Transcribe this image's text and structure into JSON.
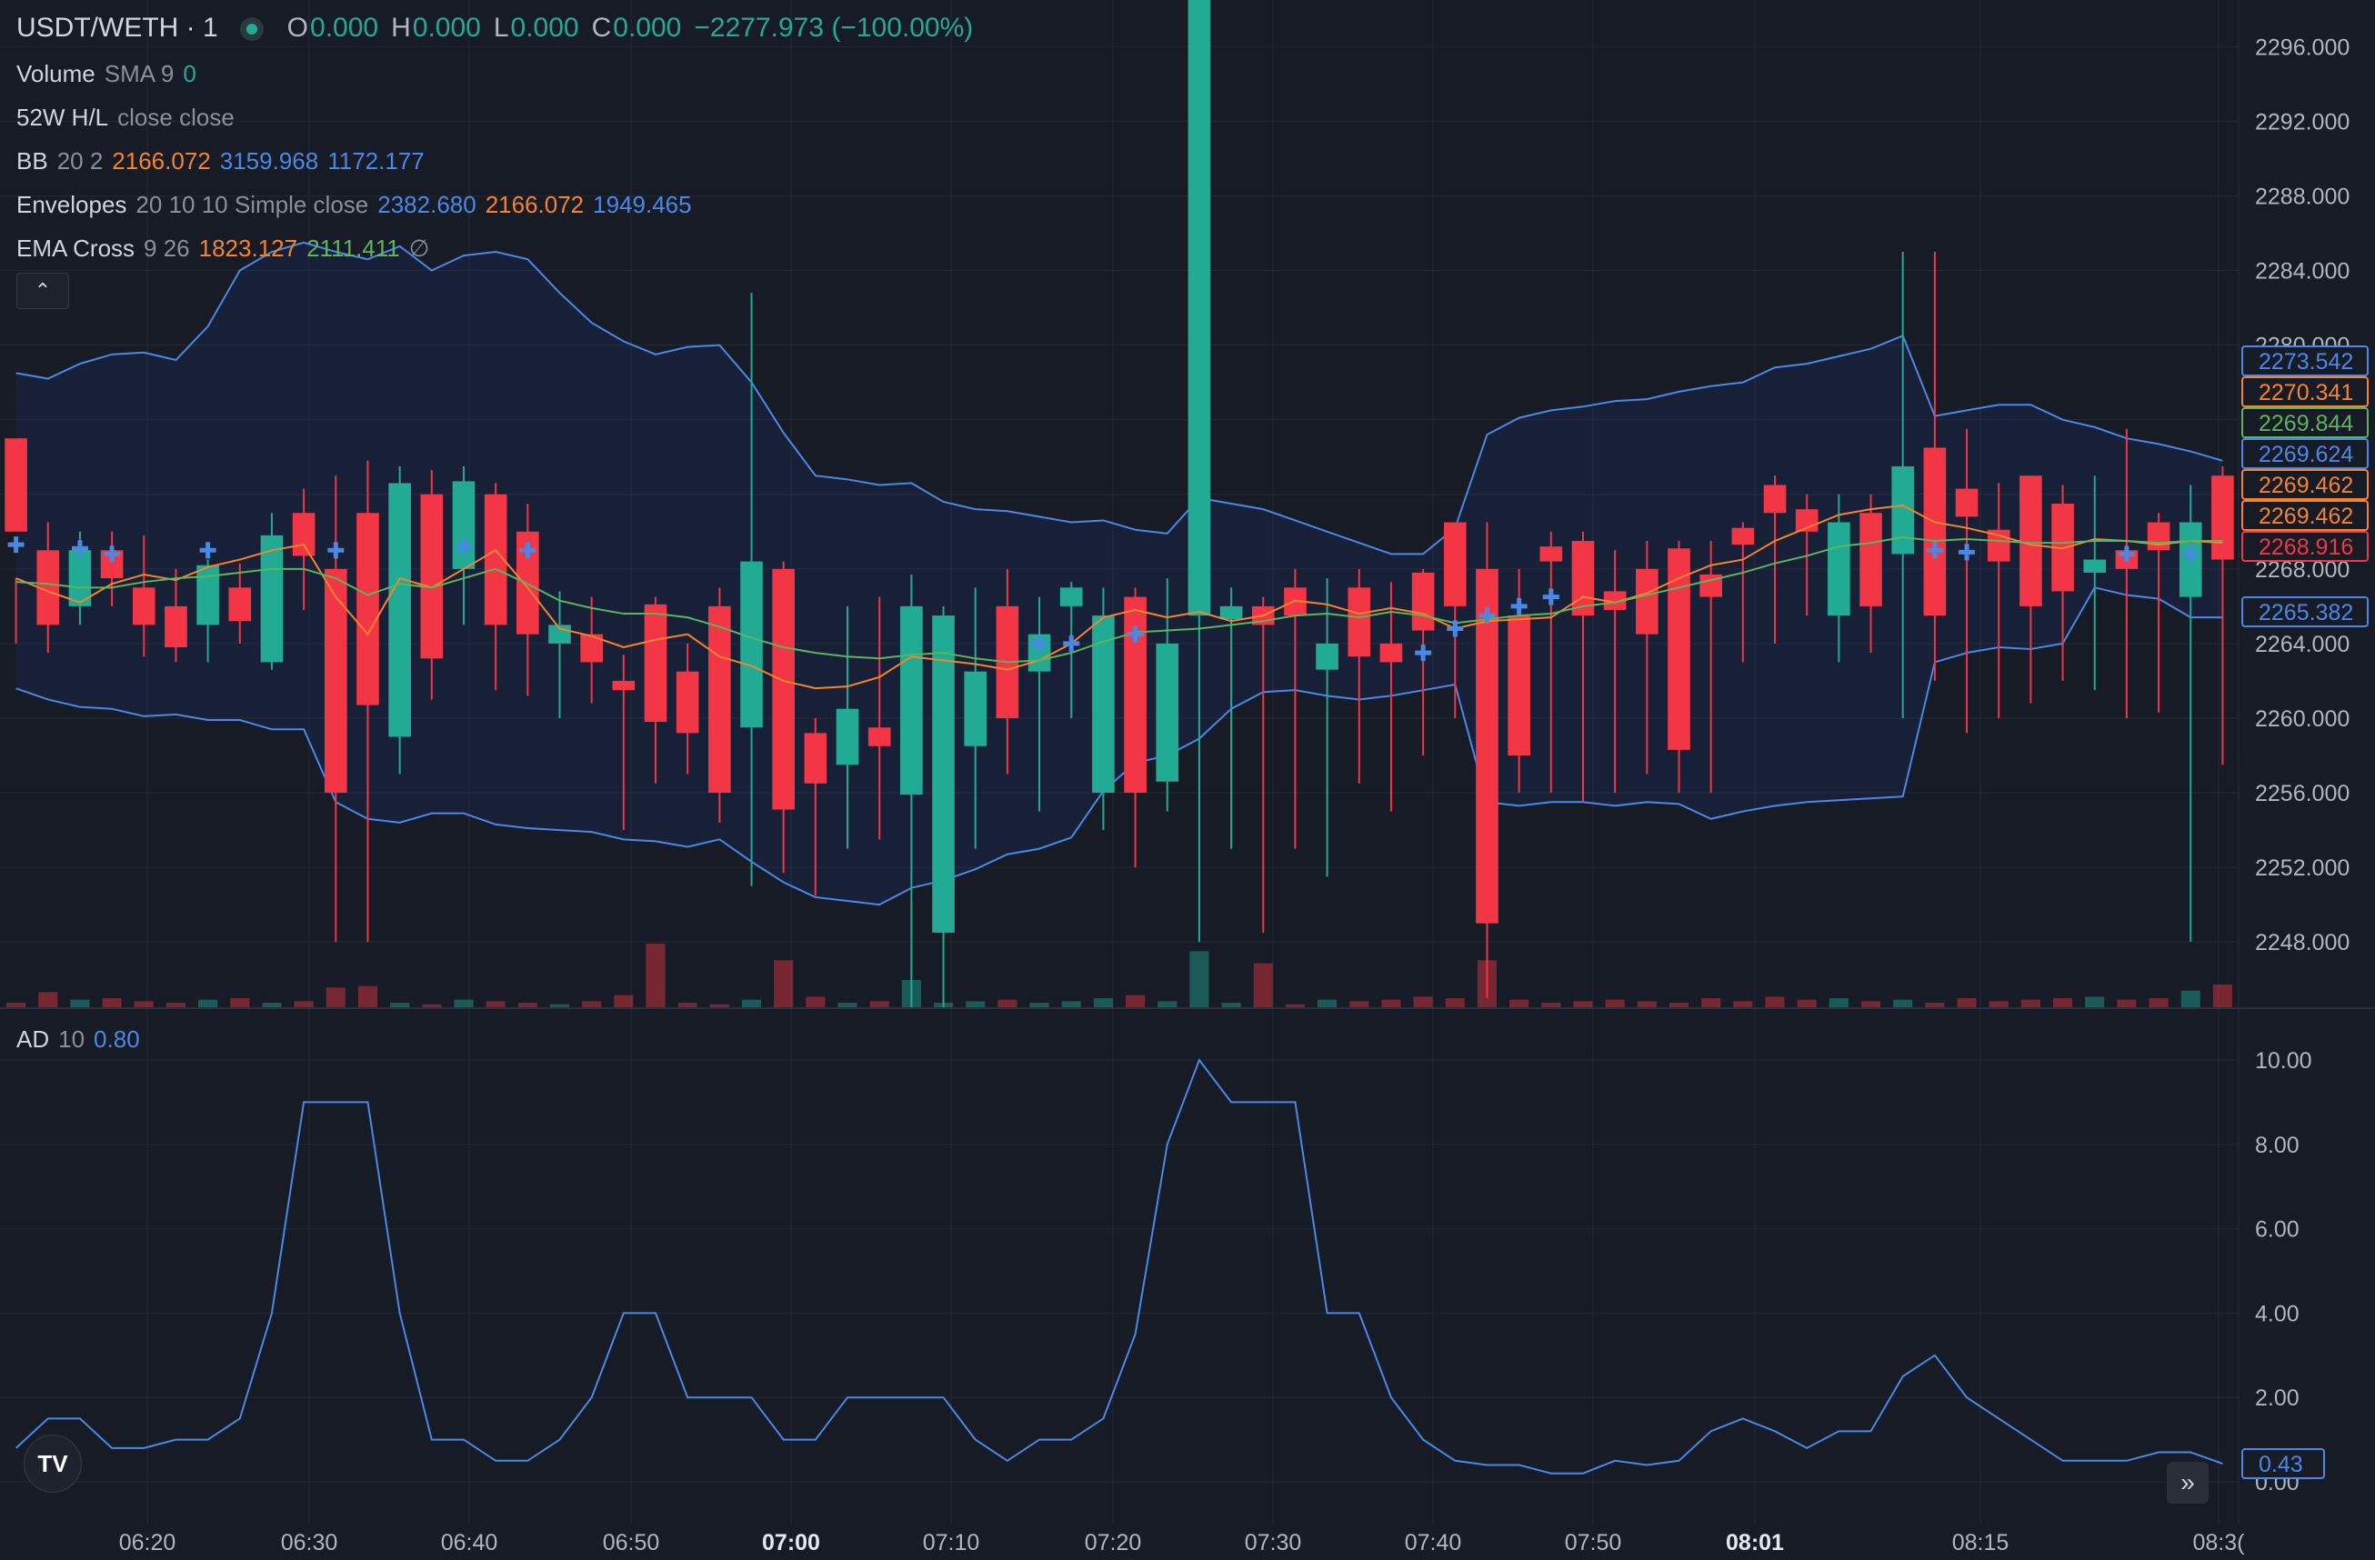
{
  "header": {
    "symbol": "USDT/WETH · 1",
    "ohlc": [
      {
        "label": "O",
        "value": "0.000"
      },
      {
        "label": "H",
        "value": "0.000"
      },
      {
        "label": "L",
        "value": "0.000"
      },
      {
        "label": "C",
        "value": "0.000"
      }
    ],
    "change": "−2277.973 (−100.00%)"
  },
  "indicators": {
    "volume": {
      "name": "Volume",
      "params": "SMA 9",
      "value": "0"
    },
    "hl52": {
      "name": "52W H/L",
      "params": "close close"
    },
    "bb": {
      "name": "BB",
      "params": "20 2",
      "values": [
        "2166.072",
        "3159.968",
        "1172.177"
      ]
    },
    "envelopes": {
      "name": "Envelopes",
      "params": "20 10 10 Simple close",
      "values": [
        "2382.680",
        "2166.072",
        "1949.465"
      ]
    },
    "ema_cross": {
      "name": "EMA Cross",
      "params": "9 26",
      "values": [
        "1823.127",
        "2111.411"
      ],
      "extra": "∅"
    },
    "ad": {
      "name": "AD",
      "params": "10",
      "value": "0.80"
    }
  },
  "buttons": {
    "collapse": "⌃",
    "scroll_right": "»",
    "logo": "TV"
  },
  "colors": {
    "up": "#22ab94",
    "down": "#f23645",
    "blue": "#4a88e8",
    "orange": "#f7832a",
    "green": "#5bb55d",
    "bg": "#171b26",
    "grid": "#242835"
  },
  "chart_data": [
    {
      "type": "candlestick",
      "y_axis_ticks": [
        "2296.000",
        "2292.000",
        "2288.000",
        "2284.000",
        "2280.000",
        "2276.000",
        "2272.000",
        "2268.000",
        "2264.000",
        "2260.000",
        "2256.000",
        "2252.000",
        "2248.000"
      ],
      "ylim": [
        2244.5,
        2298.5
      ],
      "price_labels": [
        {
          "value": "2273.542",
          "color": "#4a88e8"
        },
        {
          "value": "2270.341",
          "color": "#f7832a"
        },
        {
          "value": "2269.844",
          "color": "#5bb55d"
        },
        {
          "value": "2269.624",
          "color": "#4a88e8"
        },
        {
          "value": "2269.462",
          "color": "#f7832a"
        },
        {
          "value": "2269.462",
          "color": "#f7832a"
        },
        {
          "value": "2268.916",
          "color": "#f23645"
        },
        {
          "value": "2265.382",
          "color": "#4a88e8"
        }
      ],
      "x_axis_ticks": [
        {
          "label": "06:20",
          "bold": false
        },
        {
          "label": "06:30",
          "bold": false
        },
        {
          "label": "06:40",
          "bold": false
        },
        {
          "label": "06:50",
          "bold": false
        },
        {
          "label": "07:00",
          "bold": true
        },
        {
          "label": "07:10",
          "bold": false
        },
        {
          "label": "07:20",
          "bold": false
        },
        {
          "label": "07:30",
          "bold": false
        },
        {
          "label": "07:40",
          "bold": false
        },
        {
          "label": "07:50",
          "bold": false
        },
        {
          "label": "08:01",
          "bold": true
        },
        {
          "label": "08:15",
          "bold": false
        },
        {
          "label": "08:3(",
          "bold": false
        }
      ],
      "bb_upper": [
        2278.5,
        2278.2,
        2279,
        2279.5,
        2279.6,
        2279.2,
        2281,
        2284,
        2285,
        2285.5,
        2285,
        2284.6,
        2285.3,
        2284,
        2284.8,
        2285,
        2284.6,
        2282.8,
        2281.2,
        2280.2,
        2279.5,
        2279.9,
        2280,
        2278,
        2275.3,
        2273,
        2272.8,
        2272.5,
        2272.6,
        2271.6,
        2271.2,
        2271.1,
        2270.8,
        2270.5,
        2270.6,
        2270.1,
        2269.9,
        2271.8,
        2271.5,
        2271.2,
        2270.6,
        2270,
        2269.4,
        2268.8,
        2268.8,
        2270.2,
        2275.2,
        2276.1,
        2276.5,
        2276.7,
        2277,
        2277.1,
        2277.5,
        2277.8,
        2278,
        2278.8,
        2279,
        2279.4,
        2279.8,
        2280.5,
        2276.2,
        2276.5,
        2276.8,
        2276.8,
        2276,
        2275.6,
        2275,
        2274.7,
        2274.3,
        2273.8
      ],
      "bb_lower": [
        2261.6,
        2261,
        2260.6,
        2260.5,
        2260.1,
        2260.2,
        2259.9,
        2259.9,
        2259.4,
        2259.4,
        2255.5,
        2254.6,
        2254.4,
        2254.9,
        2254.9,
        2254.3,
        2254.1,
        2254,
        2253.9,
        2253.5,
        2253.4,
        2253.1,
        2253.5,
        2252.3,
        2251.2,
        2250.4,
        2250.2,
        2250,
        2250.9,
        2251.3,
        2251.9,
        2252.7,
        2253,
        2253.6,
        2256.1,
        2257.6,
        2258,
        2258.9,
        2260.5,
        2261.4,
        2261.5,
        2261.2,
        2261,
        2261.2,
        2261.5,
        2261.8,
        2255.5,
        2255.3,
        2255.5,
        2255.5,
        2255.3,
        2255.5,
        2255.4,
        2254.6,
        2255,
        2255.3,
        2255.5,
        2255.6,
        2255.7,
        2255.8,
        2263,
        2263.5,
        2263.8,
        2263.7,
        2264,
        2267,
        2266.6,
        2266.4,
        2265.4,
        2265.4
      ],
      "ema_fast": [
        2267.5,
        2266.8,
        2266.2,
        2267.2,
        2267.7,
        2267.4,
        2268.1,
        2268.5,
        2269,
        2269.3,
        2266.5,
        2264.5,
        2267.5,
        2267,
        2268,
        2269,
        2267,
        2264.8,
        2264.4,
        2263.8,
        2264.2,
        2264.5,
        2263.3,
        2262.8,
        2262,
        2261.6,
        2261.7,
        2262.2,
        2263.3,
        2263.1,
        2262.9,
        2262.6,
        2263.1,
        2264,
        2265.4,
        2265.8,
        2265.4,
        2265.7,
        2265.2,
        2265.5,
        2266.3,
        2266.1,
        2265.6,
        2265.9,
        2265.6,
        2264.8,
        2265.2,
        2265.3,
        2265.4,
        2266.5,
        2266.2,
        2266.7,
        2267.5,
        2268.2,
        2268.5,
        2269.5,
        2270.2,
        2270.9,
        2271.2,
        2271.4,
        2270.5,
        2270.2,
        2269.8,
        2269.3,
        2269.1,
        2269.6,
        2269.5,
        2269.3,
        2269.5,
        2269.4
      ],
      "ema_slow": [
        2267.3,
        2267.2,
        2267,
        2267,
        2267.3,
        2267.5,
        2267.6,
        2267.8,
        2268,
        2268,
        2267.5,
        2266.6,
        2267.2,
        2267,
        2267.5,
        2268,
        2267.2,
        2266.3,
        2265.9,
        2265.6,
        2265.6,
        2265.4,
        2264.9,
        2264.3,
        2263.8,
        2263.5,
        2263.3,
        2263.2,
        2263.4,
        2263.5,
        2263.2,
        2263,
        2263.1,
        2263.5,
        2264.1,
        2264.6,
        2264.7,
        2264.8,
        2265,
        2265.2,
        2265.5,
        2265.6,
        2265.4,
        2265.7,
        2265.5,
        2265.1,
        2265.3,
        2265.5,
        2265.6,
        2266,
        2266.2,
        2266.6,
        2267,
        2267.4,
        2267.8,
        2268.3,
        2268.7,
        2269.2,
        2269.4,
        2269.7,
        2269.5,
        2269.6,
        2269.5,
        2269.4,
        2269.4,
        2269.5,
        2269.5,
        2269.4,
        2269.5,
        2269.5
      ],
      "signal_crosses": [
        2269.3,
        null,
        2269.1,
        2268.8,
        null,
        null,
        2269,
        null,
        null,
        null,
        2269,
        null,
        null,
        null,
        2269.2,
        null,
        2269,
        null,
        null,
        null,
        null,
        null,
        null,
        null,
        null,
        null,
        null,
        null,
        null,
        null,
        null,
        null,
        2264,
        2264,
        null,
        2264.5,
        null,
        null,
        null,
        null,
        null,
        null,
        null,
        null,
        2263.5,
        2264.8,
        2265.5,
        2266,
        2266.5,
        null,
        null,
        null,
        null,
        null,
        null,
        null,
        null,
        null,
        null,
        null,
        2269,
        2268.9,
        null,
        null,
        null,
        null,
        2268.8,
        null,
        2268.8,
        null
      ],
      "candles": [
        [
          2275,
          2270,
          2267.5,
          2264
        ],
        [
          2269,
          2265,
          2270.5,
          2263.5
        ],
        [
          2266,
          2269,
          2270,
          2265
        ],
        [
          2269,
          2267.5,
          2270,
          2266
        ],
        [
          2267,
          2265,
          2269.8,
          2263.3
        ],
        [
          2266,
          2263.8,
          2268,
          2263
        ],
        [
          2265,
          2268.2,
          2268.5,
          2263
        ],
        [
          2267,
          2265.2,
          2268.3,
          2264
        ],
        [
          2263,
          2269.8,
          2271,
          2262.6
        ],
        [
          2271,
          2268.7,
          2272.3,
          2265.8
        ],
        [
          2268,
          2256,
          2273,
          2248
        ],
        [
          2271,
          2260.7,
          2273.8,
          2248
        ],
        [
          2259,
          2272.6,
          2273.5,
          2257
        ],
        [
          2272,
          2263.2,
          2273.3,
          2261
        ],
        [
          2268,
          2272.7,
          2273.5,
          2265
        ],
        [
          2272,
          2265,
          2272.6,
          2261.5
        ],
        [
          2270,
          2264.5,
          2271.5,
          2261.2
        ],
        [
          2264,
          2265,
          2266.8,
          2260
        ],
        [
          2264.5,
          2263,
          2266.5,
          2260.8
        ],
        [
          2262,
          2261.5,
          2263.4,
          2254
        ],
        [
          2266.1,
          2259.8,
          2266.5,
          2256.5
        ],
        [
          2262.5,
          2259.2,
          2264,
          2257
        ],
        [
          2266,
          2256,
          2267,
          2254.4
        ],
        [
          2259.5,
          2268.4,
          2282.8,
          2251
        ],
        [
          2268,
          2255.1,
          2268.4,
          2251.7
        ],
        [
          2259.2,
          2256.5,
          2260,
          2250.5
        ],
        [
          2257.5,
          2260.5,
          2266,
          2253
        ],
        [
          2259.5,
          2258.5,
          2266.5,
          2253.5
        ],
        [
          2255.9,
          2266,
          2267.7,
          2244
        ],
        [
          2248.5,
          2265.5,
          2266,
          2244.5
        ],
        [
          2258.5,
          2262.5,
          2267,
          2253
        ],
        [
          2266,
          2260,
          2268,
          2257
        ],
        [
          2262.5,
          2264.5,
          2266.5,
          2255
        ],
        [
          2266,
          2267,
          2267.3,
          2260
        ],
        [
          2256,
          2265.5,
          2267,
          2254
        ],
        [
          2266.5,
          2256,
          2267,
          2252
        ],
        [
          2256.6,
          2264,
          2267.5,
          2255
        ],
        [
          2265.5,
          2312,
          2313,
          2248
        ],
        [
          2265.3,
          2266,
          2267,
          2253
        ],
        [
          2266,
          2265,
          2266.5,
          2248.5
        ],
        [
          2267,
          2265.5,
          2268,
          2253
        ],
        [
          2262.6,
          2264,
          2267.5,
          2251.5
        ],
        [
          2267,
          2263.3,
          2268,
          2256.5
        ],
        [
          2264,
          2263,
          2267.3,
          2255
        ],
        [
          2267.8,
          2264.7,
          2268,
          2258
        ],
        [
          2270.5,
          2266,
          2270.5,
          2260
        ],
        [
          2268,
          2249,
          2270.5,
          2245
        ],
        [
          2265.5,
          2258,
          2268,
          2256
        ],
        [
          2269.2,
          2268.4,
          2270,
          2256
        ],
        [
          2269.5,
          2265.5,
          2270,
          2255.5
        ],
        [
          2266.8,
          2265.8,
          2269,
          2256
        ],
        [
          2268,
          2264.5,
          2269.5,
          2257
        ],
        [
          2269.1,
          2258.3,
          2269.5,
          2256
        ],
        [
          2267.7,
          2266.5,
          2269.5,
          2256
        ],
        [
          2270.2,
          2269.3,
          2270.5,
          2263
        ],
        [
          2272.5,
          2271,
          2273,
          2264
        ],
        [
          2271.2,
          2270,
          2272,
          2265.5
        ],
        [
          2265.5,
          2270.5,
          2272,
          2263
        ],
        [
          2271,
          2266,
          2272,
          2263.5
        ],
        [
          2268.8,
          2273.5,
          2285,
          2260
        ],
        [
          2274.5,
          2265.5,
          2285,
          2262
        ],
        [
          2272.3,
          2270.8,
          2275.5,
          2259.2
        ],
        [
          2270.1,
          2268.4,
          2272.6,
          2260
        ],
        [
          2273,
          2266,
          2273,
          2260.8
        ],
        [
          2271.5,
          2266.8,
          2272.5,
          2262
        ],
        [
          2267.8,
          2268.5,
          2273,
          2261.5
        ],
        [
          2269,
          2268,
          2275.5,
          2260
        ],
        [
          2270.5,
          2269,
          2271,
          2260.3
        ],
        [
          2266.5,
          2270.5,
          2272.5,
          2248
        ],
        [
          2273,
          2268.5,
          2273.5,
          2257.5
        ]
      ],
      "volume": [
        0.3,
        1,
        0.5,
        0.6,
        0.4,
        0.3,
        0.5,
        0.6,
        0.3,
        0.4,
        1.3,
        1.4,
        0.3,
        0.2,
        0.5,
        0.4,
        0.3,
        0.2,
        0.4,
        0.8,
        4.2,
        0.3,
        0.2,
        0.5,
        3.1,
        0.7,
        0.3,
        0.4,
        1.8,
        0.3,
        0.4,
        0.5,
        0.3,
        0.4,
        0.6,
        0.8,
        0.4,
        3.7,
        0.3,
        2.9,
        0.2,
        0.5,
        0.4,
        0.5,
        0.7,
        0.6,
        3.1,
        0.5,
        0.3,
        0.4,
        0.5,
        0.4,
        0.3,
        0.6,
        0.4,
        0.7,
        0.5,
        0.6,
        0.4,
        0.5,
        0.3,
        0.6,
        0.4,
        0.5,
        0.6,
        0.7,
        0.5,
        0.6,
        1.1,
        1.5
      ]
    },
    {
      "type": "line",
      "title": "AD 10",
      "y_axis_ticks": [
        "10.00",
        "8.00",
        "6.00",
        "4.00",
        "2.00",
        "0.00"
      ],
      "ylim": [
        0,
        10
      ],
      "last_value_label": "0.43",
      "values": [
        0.8,
        1.5,
        1.5,
        0.8,
        0.8,
        1,
        1,
        1.5,
        4,
        9,
        9,
        9,
        4,
        1,
        1,
        0.5,
        0.5,
        1,
        2,
        4,
        4,
        2,
        2,
        2,
        1,
        1,
        2,
        2,
        2,
        2,
        1,
        0.5,
        1,
        1,
        1.5,
        3.5,
        8,
        10,
        9,
        9,
        9,
        4,
        4,
        2,
        1,
        0.5,
        0.4,
        0.4,
        0.2,
        0.2,
        0.5,
        0.4,
        0.5,
        1.2,
        1.5,
        1.2,
        0.8,
        1.2,
        1.2,
        2.5,
        3,
        2,
        1.5,
        1,
        0.5,
        0.5,
        0.5,
        0.7,
        0.7,
        0.43
      ]
    }
  ]
}
